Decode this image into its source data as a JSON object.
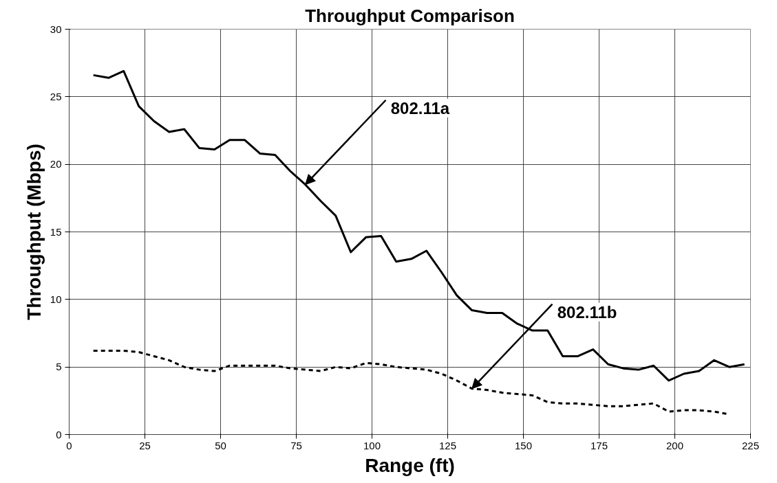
{
  "chart_data": {
    "type": "line",
    "title": "Throughput Comparison",
    "xlabel": "Range (ft)",
    "ylabel": "Throughput (Mbps)",
    "xlim": [
      0,
      225
    ],
    "xticks": [
      0,
      25,
      50,
      75,
      100,
      125,
      150,
      175,
      200,
      225
    ],
    "ylim": [
      0,
      30
    ],
    "yticks": [
      0,
      5,
      10,
      15,
      20,
      25,
      30
    ],
    "grid": true,
    "series": [
      {
        "color": "#000000",
        "line_style": "solid",
        "x": [
          8,
          13,
          18,
          23,
          28,
          33,
          38,
          43,
          48,
          53,
          58,
          63,
          68,
          73,
          78,
          83,
          88,
          93,
          98,
          103,
          108,
          113,
          118,
          123,
          128,
          133,
          138,
          143,
          148,
          153,
          158,
          163,
          168,
          173,
          178,
          183,
          188,
          193,
          198,
          203,
          208,
          213,
          218,
          223
        ],
        "values": [
          26.6,
          26.4,
          26.9,
          24.3,
          23.2,
          22.4,
          22.6,
          21.2,
          21.1,
          21.8,
          21.8,
          20.8,
          20.7,
          19.5,
          18.5,
          17.3,
          16.2,
          13.5,
          14.6,
          14.7,
          12.8,
          13.0,
          13.6,
          12.0,
          10.3,
          9.2,
          9.0,
          9.0,
          8.2,
          7.7,
          7.7,
          5.8,
          5.8,
          6.3,
          5.2,
          4.9,
          4.8,
          5.1,
          4.0,
          4.5,
          4.7,
          5.5,
          5.0,
          5.2
        ]
      },
      {
        "color": "#000000",
        "line_style": "dashed",
        "x": [
          8,
          13,
          18,
          23,
          28,
          33,
          38,
          43,
          48,
          53,
          58,
          63,
          68,
          73,
          78,
          83,
          88,
          93,
          98,
          103,
          108,
          113,
          118,
          123,
          128,
          133,
          138,
          143,
          148,
          153,
          158,
          163,
          168,
          173,
          178,
          183,
          188,
          193,
          198,
          203,
          208,
          213,
          218
        ],
        "values": [
          6.2,
          6.2,
          6.2,
          6.1,
          5.8,
          5.5,
          5.0,
          4.8,
          4.7,
          5.1,
          5.1,
          5.1,
          5.1,
          4.9,
          4.8,
          4.7,
          5.0,
          4.9,
          5.3,
          5.2,
          5.0,
          4.9,
          4.8,
          4.5,
          4.0,
          3.4,
          3.3,
          3.1,
          3.0,
          2.9,
          2.4,
          2.3,
          2.3,
          2.2,
          2.1,
          2.1,
          2.2,
          2.3,
          1.7,
          1.8,
          1.8,
          1.7,
          1.5
        ]
      }
    ],
    "annotations": [
      {
        "text": "802.11a",
        "x": 78,
        "y": 18.5
      },
      {
        "text": "802.11b",
        "x": 133,
        "y": 3.4
      }
    ]
  }
}
